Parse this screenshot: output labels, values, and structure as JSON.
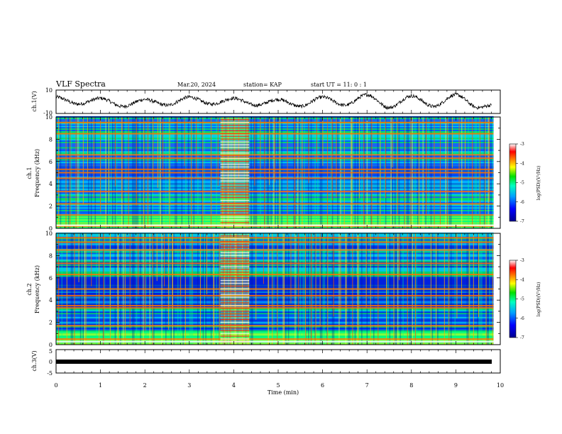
{
  "header": {
    "title": "VLF Spectra",
    "date": "Mar.20, 2024",
    "station": "station= KAP",
    "start_ut": "start  UT  =   11: 0  : 1"
  },
  "chart_data": [
    {
      "type": "line",
      "panel": "ch1-waveform",
      "ylabel": "ch.1(V)",
      "ylim": [
        -10,
        10
      ],
      "y_ticks": [
        "10",
        "-10"
      ],
      "xlim": [
        0,
        10
      ],
      "description_of_trace": "continuous oscillating voltage, mostly between about -8 and 8 V",
      "sample_points_min_volt": [
        [
          0,
          4
        ],
        [
          0.5,
          -2
        ],
        [
          1,
          3
        ],
        [
          1.5,
          -4
        ],
        [
          2,
          2
        ],
        [
          2.5,
          -3
        ],
        [
          3,
          4
        ],
        [
          3.5,
          -2
        ],
        [
          4,
          3
        ],
        [
          4.5,
          -3
        ],
        [
          5,
          2
        ],
        [
          5.5,
          -4
        ],
        [
          6,
          4
        ],
        [
          6.5,
          -3
        ],
        [
          7,
          6
        ],
        [
          7.5,
          -5
        ],
        [
          8,
          5
        ],
        [
          8.5,
          -4
        ],
        [
          9,
          6
        ],
        [
          9.5,
          -5
        ],
        [
          9.8,
          -3
        ]
      ]
    },
    {
      "type": "heatmap",
      "panel": "ch1-spectrogram",
      "ylabel": "ch.1\nFrequency  (kHz)",
      "ylabel_lines": [
        "ch.1",
        "Frequency  (kHz)"
      ],
      "ylim": [
        0,
        10
      ],
      "y_ticks": [
        "0",
        "2",
        "4",
        "6",
        "8",
        "10"
      ],
      "xlim": [
        0,
        10
      ],
      "data_span_min": [
        0,
        9.85
      ],
      "colorbar": {
        "label": "log(PSD)(V²/Hz)",
        "range": [
          -7,
          -3
        ],
        "ticks": [
          "-3",
          "-4",
          "-5",
          "-6",
          "-7"
        ],
        "colors": [
          "#0000a0",
          "#0000ff",
          "#00aaff",
          "#00ffaa",
          "#00e000",
          "#ffff00",
          "#ff8800",
          "#ff0000",
          "#ffffff"
        ]
      },
      "strong_bands_khz": [
        0.2,
        1.2,
        2.2,
        3.3,
        4.5,
        5.0,
        5.3,
        6.3,
        6.6,
        8.5,
        9.5
      ],
      "burst_interval_min": [
        3.7,
        4.35
      ]
    },
    {
      "type": "heatmap",
      "panel": "ch2-spectrogram",
      "ylabel": "ch.2\nFrequency  (kHz)",
      "ylabel_lines": [
        "ch.2",
        "Frequency  (kHz)"
      ],
      "ylim": [
        0,
        10
      ],
      "y_ticks": [
        "0",
        "2",
        "4",
        "6",
        "8",
        "10"
      ],
      "xlim": [
        0,
        10
      ],
      "data_span_min": [
        0,
        9.85
      ],
      "colorbar": {
        "label": "log(PSD)(V²/Hz)",
        "range": [
          -7,
          -3
        ],
        "ticks": [
          "-3",
          "-4",
          "-5",
          "-6",
          "-7"
        ]
      },
      "strong_bands_khz": [
        0.5,
        1.7,
        3.3,
        3.5,
        4.4,
        5.0,
        6.3,
        7.3,
        8.5,
        9.2,
        9.6
      ],
      "burst_interval_min": [
        3.7,
        4.35
      ]
    },
    {
      "type": "line",
      "panel": "ch3-waveform",
      "ylabel": "ch.3(V)",
      "ylim": [
        -5,
        5
      ],
      "y_ticks": [
        "5",
        "0",
        "-5"
      ],
      "xlim": [
        0,
        10
      ],
      "constant_level_volt": 0,
      "xlabel": "Time  (min)",
      "x_ticks": [
        "0",
        "1",
        "2",
        "3",
        "4",
        "5",
        "6",
        "7",
        "8",
        "9",
        "10"
      ]
    }
  ]
}
